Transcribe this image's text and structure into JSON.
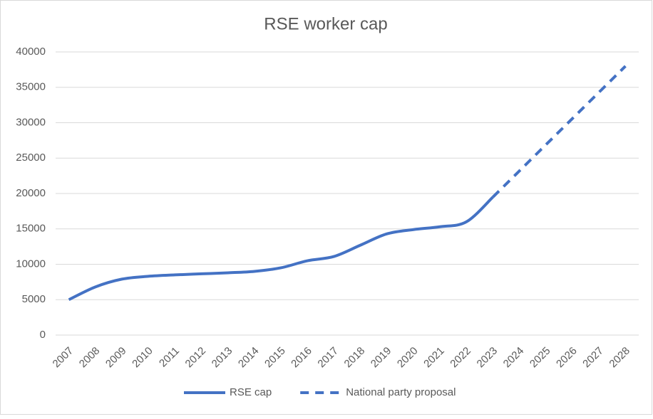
{
  "chart_data": {
    "type": "line",
    "title": "RSE worker cap",
    "categories": [
      "2007",
      "2008",
      "2009",
      "2010",
      "2011",
      "2012",
      "2013",
      "2014",
      "2015",
      "2016",
      "2017",
      "2018",
      "2019",
      "2020",
      "2021",
      "2022",
      "2023",
      "2024",
      "2025",
      "2026",
      "2027",
      "2028"
    ],
    "series": [
      {
        "name": "RSE cap",
        "color": "#4472c4",
        "dashed": false,
        "values": [
          5000,
          6800,
          7900,
          8300,
          8500,
          8650,
          8800,
          9000,
          9500,
          10500,
          11100,
          12700,
          14300,
          14900,
          15300,
          16000,
          19500,
          null,
          null,
          null,
          null,
          null
        ]
      },
      {
        "name": "National party proposal",
        "color": "#4472c4",
        "dashed": true,
        "values": [
          null,
          null,
          null,
          null,
          null,
          null,
          null,
          null,
          null,
          null,
          null,
          null,
          null,
          null,
          null,
          null,
          19500,
          23200,
          26900,
          30600,
          34300,
          38000
        ]
      }
    ],
    "ylim": [
      0,
      40000
    ],
    "yticks": [
      0,
      5000,
      10000,
      15000,
      20000,
      25000,
      30000,
      35000,
      40000
    ],
    "grid": true,
    "smooth": true,
    "legend": "bottom"
  }
}
